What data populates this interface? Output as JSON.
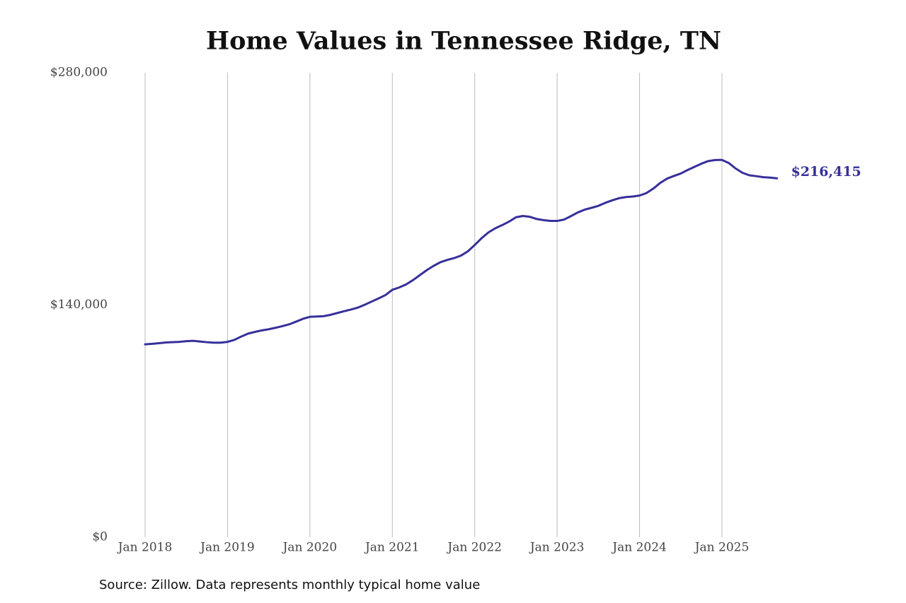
{
  "chart_data": {
    "type": "line",
    "title": "Home Values in Tennessee Ridge, TN",
    "source": "Source: Zillow. Data represents monthly typical home value",
    "x": [
      "2018-01",
      "2018-02",
      "2018-03",
      "2018-04",
      "2018-05",
      "2018-06",
      "2018-07",
      "2018-08",
      "2018-09",
      "2018-10",
      "2018-11",
      "2018-12",
      "2019-01",
      "2019-02",
      "2019-03",
      "2019-04",
      "2019-05",
      "2019-06",
      "2019-07",
      "2019-08",
      "2019-09",
      "2019-10",
      "2019-11",
      "2019-12",
      "2020-01",
      "2020-02",
      "2020-03",
      "2020-04",
      "2020-05",
      "2020-06",
      "2020-07",
      "2020-08",
      "2020-09",
      "2020-10",
      "2020-11",
      "2020-12",
      "2021-01",
      "2021-02",
      "2021-03",
      "2021-04",
      "2021-05",
      "2021-06",
      "2021-07",
      "2021-08",
      "2021-09",
      "2021-10",
      "2021-11",
      "2021-12",
      "2022-01",
      "2022-02",
      "2022-03",
      "2022-04",
      "2022-05",
      "2022-06",
      "2022-07",
      "2022-08",
      "2022-09",
      "2022-10",
      "2022-11",
      "2022-12",
      "2023-01",
      "2023-02",
      "2023-03",
      "2023-04",
      "2023-05",
      "2023-06",
      "2023-07",
      "2023-08",
      "2023-09",
      "2023-10",
      "2023-11",
      "2023-12",
      "2024-01",
      "2024-02",
      "2024-03",
      "2024-04",
      "2024-05",
      "2024-06",
      "2024-07",
      "2024-08",
      "2024-09",
      "2024-10",
      "2024-11",
      "2024-12",
      "2025-01",
      "2025-02",
      "2025-03",
      "2025-04",
      "2025-05",
      "2025-06",
      "2025-07",
      "2025-08",
      "2025-09"
    ],
    "series": [
      {
        "name": "Typical home value",
        "color": "#36309a",
        "values": [
          116300,
          116600,
          117000,
          117400,
          117600,
          117800,
          118200,
          118400,
          118000,
          117600,
          117300,
          117300,
          117800,
          119000,
          121000,
          122800,
          123800,
          124700,
          125400,
          126300,
          127300,
          128400,
          130000,
          131700,
          132900,
          133100,
          133300,
          134100,
          135200,
          136300,
          137300,
          138500,
          140200,
          142100,
          144000,
          146000,
          149200,
          150600,
          152400,
          155000,
          158000,
          161000,
          163600,
          165800,
          167200,
          168300,
          169800,
          172400,
          176200,
          180300,
          183800,
          186300,
          188200,
          190300,
          192900,
          193700,
          193200,
          191900,
          191200,
          190700,
          190700,
          191500,
          193600,
          195800,
          197500,
          198600,
          199800,
          201600,
          203100,
          204400,
          205100,
          205400,
          206000,
          207500,
          210200,
          213600,
          216200,
          217800,
          219300,
          221400,
          223300,
          225200,
          226800,
          227400,
          227500,
          225600,
          222300,
          219700,
          218200,
          217700,
          217100,
          216800,
          216415
        ]
      }
    ],
    "annotations": [
      {
        "x": "2025-09",
        "value": 216415,
        "label": "$216,415"
      }
    ],
    "ylim": [
      0,
      280000
    ],
    "yticks": [
      {
        "value": 0,
        "label": "$0"
      },
      {
        "value": 140000,
        "label": "$140,000"
      },
      {
        "value": 280000,
        "label": "$280,000"
      }
    ],
    "xticks": [
      {
        "value": "2018-01",
        "label": "Jan 2018"
      },
      {
        "value": "2019-01",
        "label": "Jan 2019"
      },
      {
        "value": "2020-01",
        "label": "Jan 2020"
      },
      {
        "value": "2021-01",
        "label": "Jan 2021"
      },
      {
        "value": "2022-01",
        "label": "Jan 2022"
      },
      {
        "value": "2023-01",
        "label": "Jan 2023"
      },
      {
        "value": "2024-01",
        "label": "Jan 2024"
      },
      {
        "value": "2025-01",
        "label": "Jan 2025"
      }
    ],
    "grid": "x"
  }
}
